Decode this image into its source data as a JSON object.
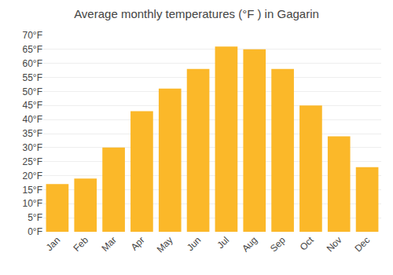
{
  "chart_data": {
    "type": "bar",
    "title": "Average monthly temperatures (°F ) in Gagarin",
    "categories": [
      "Jan",
      "Feb",
      "Mar",
      "Apr",
      "May",
      "Jun",
      "Jul",
      "Aug",
      "Sep",
      "Oct",
      "Nov",
      "Dec"
    ],
    "values": [
      17,
      19,
      30,
      43,
      51,
      58,
      66,
      65,
      58,
      45,
      34,
      23
    ],
    "color": "#FBB829",
    "ylim": [
      0,
      70
    ],
    "yticks": [
      {
        "value": 0,
        "label": "0°F"
      },
      {
        "value": 5,
        "label": "5°F"
      },
      {
        "value": 10,
        "label": "10°F"
      },
      {
        "value": 15,
        "label": "15°F"
      },
      {
        "value": 20,
        "label": "20°F"
      },
      {
        "value": 25,
        "label": "25°F"
      },
      {
        "value": 30,
        "label": "30°F"
      },
      {
        "value": 35,
        "label": "35°F"
      },
      {
        "value": 40,
        "label": "40°F"
      },
      {
        "value": 45,
        "label": "45°F"
      },
      {
        "value": 50,
        "label": "50°F"
      },
      {
        "value": 55,
        "label": "55°F"
      },
      {
        "value": 60,
        "label": "60°F"
      },
      {
        "value": 65,
        "label": "65°F"
      },
      {
        "value": 70,
        "label": "70°F"
      }
    ],
    "grid": true
  }
}
